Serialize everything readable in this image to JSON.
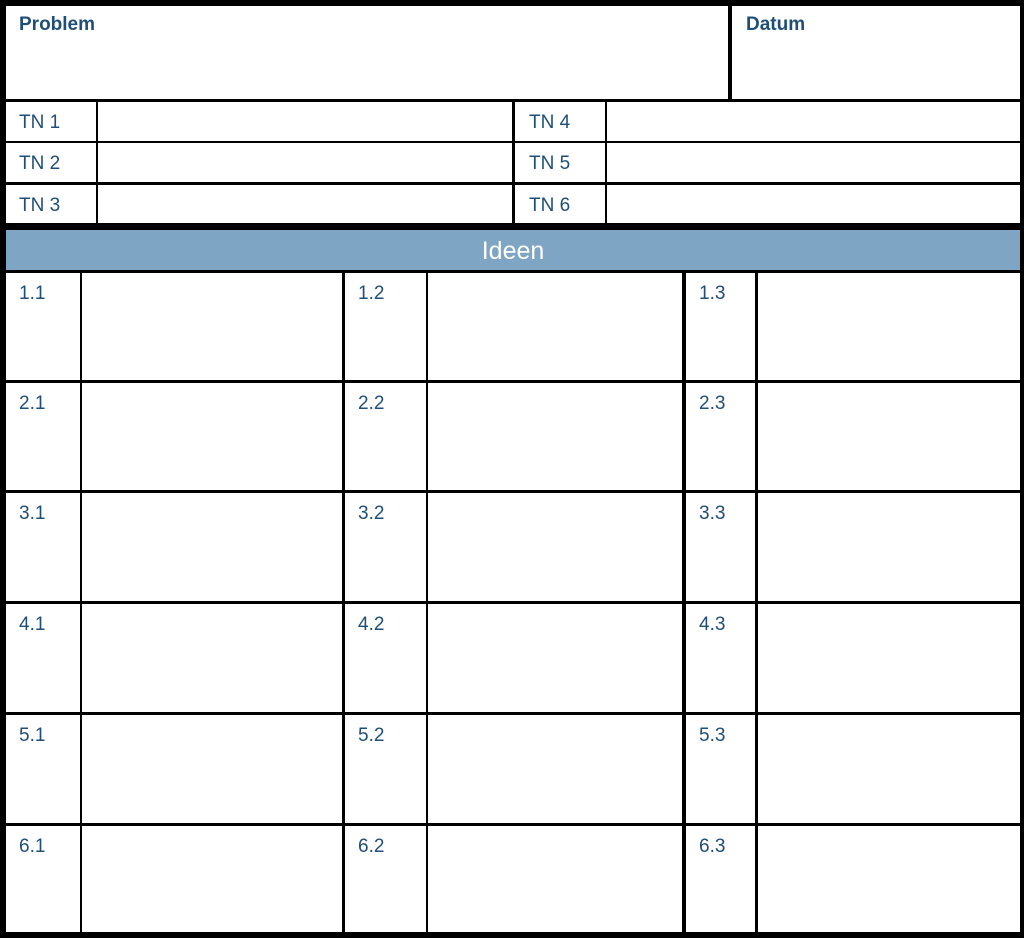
{
  "header": {
    "problem_label": "Problem",
    "date_label": "Datum"
  },
  "participants": {
    "left": [
      "TN 1",
      "TN 2",
      "TN 3"
    ],
    "right": [
      "TN 4",
      "TN 5",
      "TN 6"
    ]
  },
  "ideas": {
    "title": "Ideen",
    "rows": [
      [
        "1.1",
        "1.2",
        "1.3"
      ],
      [
        "2.1",
        "2.2",
        "2.3"
      ],
      [
        "3.1",
        "3.2",
        "3.3"
      ],
      [
        "4.1",
        "4.2",
        "4.3"
      ],
      [
        "5.1",
        "5.2",
        "5.3"
      ],
      [
        "6.1",
        "6.2",
        "6.3"
      ]
    ]
  }
}
